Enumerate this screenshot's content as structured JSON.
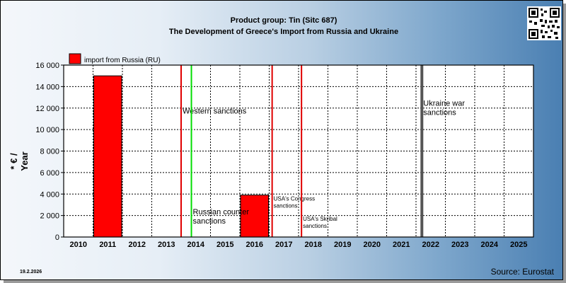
{
  "header": {
    "title_line1": "Product group: Tin (Sitc 687)",
    "title_line2": "The Development of Greece's Import from  Russia and Ukraine"
  },
  "footer": {
    "date": "19.2.2026",
    "source": "Source: Eurostat"
  },
  "qr_icon": "qr-code-icon",
  "chart_data": {
    "type": "bar",
    "ylabel": "* € / Year",
    "ylim": [
      0,
      16000
    ],
    "yticks": [
      0,
      2000,
      4000,
      6000,
      8000,
      10000,
      12000,
      14000,
      16000
    ],
    "ytick_labels": [
      "0",
      "2 000",
      "4 000",
      "6 000",
      "8 000",
      "10 000",
      "12 000",
      "14 000",
      "16 000"
    ],
    "categories": [
      "2010",
      "2011",
      "2012",
      "2013",
      "2014",
      "2015",
      "2016",
      "2017",
      "2018",
      "2019",
      "2020",
      "2021",
      "2022",
      "2023",
      "2024",
      "2025"
    ],
    "series": [
      {
        "name": "import from Russia (RU)",
        "color": "#ff0000",
        "values": [
          0,
          15000,
          0,
          0,
          0,
          0,
          3900,
          0,
          0,
          0,
          0,
          0,
          0,
          0,
          0,
          0
        ]
      }
    ],
    "grid": true,
    "legend": "top-left",
    "annotations": [
      {
        "text": "Western sanctions",
        "year": 2014.0,
        "color": "#e00000",
        "y": 11500
      },
      {
        "text": "Russian counter sanctions",
        "year": 2014.35,
        "color": "#00dd00",
        "y": 2100
      },
      {
        "text": "USA's Congress sanctions",
        "year": 2017.1,
        "color": "#e00000",
        "y": 3400
      },
      {
        "text": "USA's Skribal sanctions",
        "year": 2018.1,
        "color": "#e00000",
        "y": 1500
      },
      {
        "text": "Ukraine war sanctions",
        "year": 2022.2,
        "color": "#555555",
        "y": 12200
      }
    ]
  }
}
